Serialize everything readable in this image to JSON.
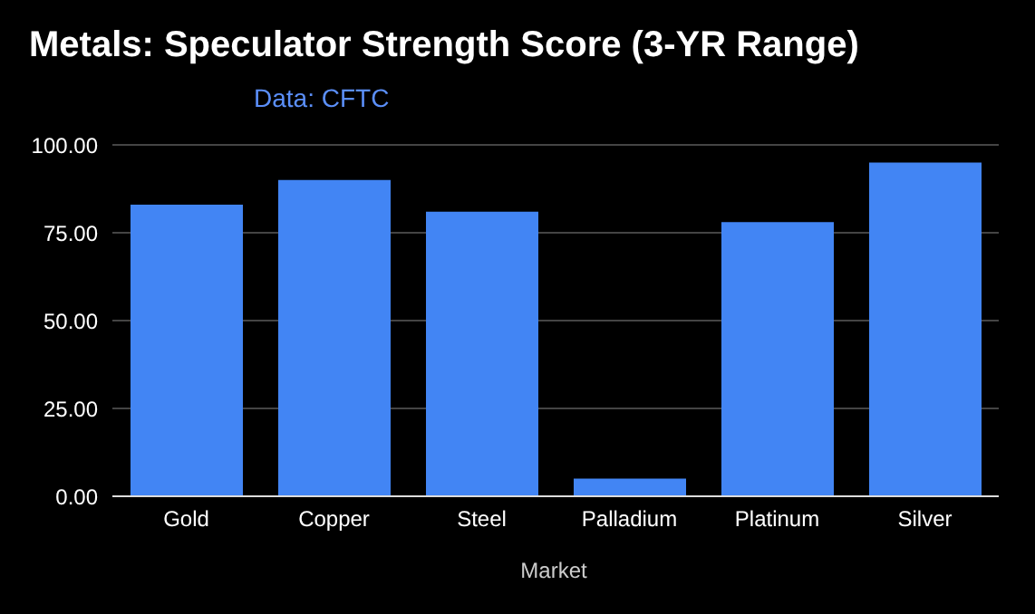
{
  "chart_data": {
    "type": "bar",
    "title": "Metals: Speculator Strength Score (3-YR Range)",
    "subtitle": "Data: CFTC",
    "xlabel": "Market",
    "categories": [
      "Gold",
      "Copper",
      "Steel",
      "Palladium",
      "Platinum",
      "Silver"
    ],
    "values": [
      83,
      90,
      81,
      5,
      78,
      95
    ],
    "color": "#4285f4",
    "ylim": [
      0,
      100
    ],
    "yticks": [
      {
        "value": 0,
        "label": "0.00"
      },
      {
        "value": 25,
        "label": "25.00"
      },
      {
        "value": 50,
        "label": "50.00"
      },
      {
        "value": 75,
        "label": "75.00"
      },
      {
        "value": 100,
        "label": "100.00"
      }
    ],
    "grid": "y",
    "legend": false
  }
}
